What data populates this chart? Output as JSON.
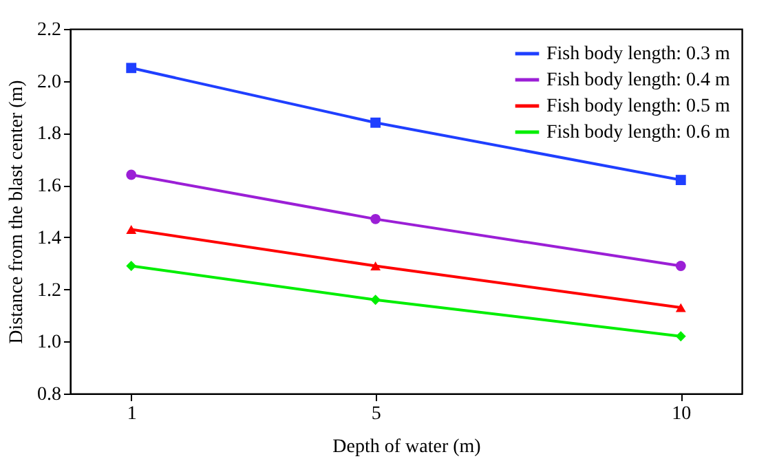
{
  "chart_data": {
    "type": "line",
    "xlabel": "Depth of water (m)",
    "ylabel": "Distance from the blast center (m)",
    "x": [
      1,
      5,
      10
    ],
    "xlim": [
      0,
      11
    ],
    "xticks": [
      1,
      5,
      10
    ],
    "ylim": [
      0.8,
      2.2
    ],
    "yticks": [
      0.8,
      {
        "value": 1,
        "label": "1.0"
      },
      1.2,
      1.4,
      1.6,
      1.8,
      {
        "value": 2,
        "label": "2.0"
      },
      2.2
    ],
    "grid": false,
    "legend": "top right",
    "line_style": "solid",
    "series": [
      {
        "name": "Fish body length: 0.3 m",
        "color": "#1f3fff",
        "marker": "square",
        "values": [
          2.05,
          1.84,
          1.62
        ]
      },
      {
        "name": "Fish body length: 0.4 m",
        "color": "#9b1fd6",
        "marker": "circle",
        "values": [
          1.64,
          1.47,
          1.29
        ]
      },
      {
        "name": "Fish body length: 0.5 m",
        "color": "#ff0000",
        "marker": "triangle",
        "values": [
          1.43,
          1.29,
          1.13
        ]
      },
      {
        "name": "Fish body length: 0.6 m",
        "color": "#00ee00",
        "marker": "diamond",
        "values": [
          1.29,
          1.16,
          1.02
        ]
      }
    ]
  }
}
